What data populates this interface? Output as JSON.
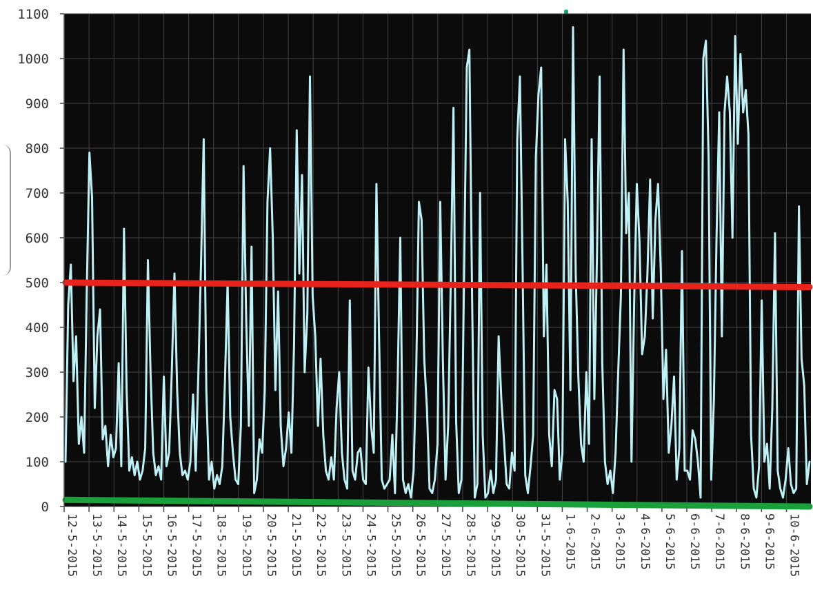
{
  "chart_data": {
    "type": "line",
    "title": "",
    "xlabel": "",
    "ylabel": "",
    "ylim": [
      0,
      1100
    ],
    "yticks": [
      "0",
      "100",
      "200",
      "300",
      "400",
      "500",
      "600",
      "700",
      "800",
      "900",
      "1000",
      "1100"
    ],
    "xticks": [
      "12-5-2015",
      "13-5-2015",
      "14-5-2015",
      "15-5-2015",
      "16-5-2015",
      "17-5-2015",
      "18-5-2015",
      "19-5-2015",
      "20-5-2015",
      "21-5-2015",
      "22-5-2015",
      "23-5-2015",
      "24-5-2015",
      "25-5-2015",
      "26-5-2015",
      "27-5-2015",
      "28-5-2015",
      "29-5-2015",
      "30-5-2015",
      "31-5-2015",
      "1-6-2015",
      "2-6-2015",
      "3-6-2015",
      "4-6-2015",
      "5-6-2015",
      "6-6-2015",
      "7-6-2015",
      "8-6-2015",
      "9-6-2015",
      "10-6-2015"
    ],
    "grid": true,
    "legend": "none",
    "series": [
      {
        "values": [
          100,
          450,
          540,
          280,
          380,
          140,
          200,
          120,
          480,
          790,
          690,
          220,
          380,
          440,
          150,
          180,
          90,
          160,
          110,
          130,
          320,
          90,
          620,
          260,
          80,
          110,
          70,
          100,
          60,
          80,
          130,
          550,
          300,
          120,
          70,
          90,
          60,
          290,
          90,
          120,
          300,
          520,
          260,
          120,
          70,
          80,
          60,
          100,
          250,
          80,
          300,
          540,
          820,
          260,
          60,
          100,
          40,
          70,
          50,
          90,
          280,
          500,
          200,
          120,
          60,
          50,
          180,
          760,
          420,
          180,
          580,
          30,
          60,
          150,
          120,
          260,
          680,
          800,
          600,
          260,
          480,
          180,
          90,
          130,
          210,
          120,
          360,
          840,
          520,
          740,
          300,
          430,
          960,
          470,
          380,
          180,
          330,
          160,
          80,
          60,
          110,
          60,
          220,
          300,
          120,
          60,
          40,
          460,
          80,
          60,
          120,
          130,
          60,
          50,
          310,
          180,
          120,
          720,
          380,
          60,
          40,
          50,
          60,
          160,
          30,
          280,
          600,
          60,
          30,
          50,
          20,
          80,
          310,
          680,
          640,
          330,
          220,
          40,
          30,
          60,
          140,
          680,
          330,
          60,
          180,
          510,
          890,
          190,
          30,
          60,
          520,
          980,
          1020,
          470,
          20,
          50,
          700,
          160,
          20,
          30,
          80,
          30,
          60,
          380,
          240,
          150,
          50,
          40,
          120,
          80,
          820,
          960,
          540,
          70,
          30,
          90,
          160,
          780,
          920,
          980,
          380,
          540,
          160,
          90,
          260,
          240,
          60,
          120,
          820,
          680,
          260,
          1070,
          520,
          290,
          140,
          100,
          300,
          140,
          820,
          240,
          560,
          960,
          320,
          100,
          50,
          80,
          30,
          120,
          300,
          470,
          1020,
          610,
          700,
          100,
          460,
          720,
          590,
          340,
          380,
          520,
          730,
          420,
          640,
          720,
          530,
          240,
          350,
          120,
          180,
          290,
          60,
          130,
          570,
          80,
          80,
          60,
          170,
          150,
          100,
          20,
          1000,
          1040,
          780,
          60,
          240,
          600,
          880,
          380,
          880,
          960,
          880,
          600,
          1050,
          810,
          1010,
          880,
          930,
          830,
          160,
          40,
          20,
          90,
          460,
          100,
          140,
          40,
          220,
          610,
          80,
          40,
          20,
          60,
          130,
          50,
          30,
          40,
          670,
          330,
          270,
          50,
          100
        ],
        "color": "#bff0f5"
      },
      {
        "name": "",
        "values": [
          500,
          490
        ],
        "type": "reference-line",
        "color": "#e8231c"
      },
      {
        "name": "",
        "values": [
          15,
          0
        ],
        "type": "reference-line",
        "color": "#1aa03a"
      }
    ]
  },
  "colors": {
    "plot_background": "#0b0b0b",
    "gridline": "#444444",
    "data_line": "#bff0f5",
    "upper_line": "#e8231c",
    "lower_line": "#1aa03a"
  }
}
